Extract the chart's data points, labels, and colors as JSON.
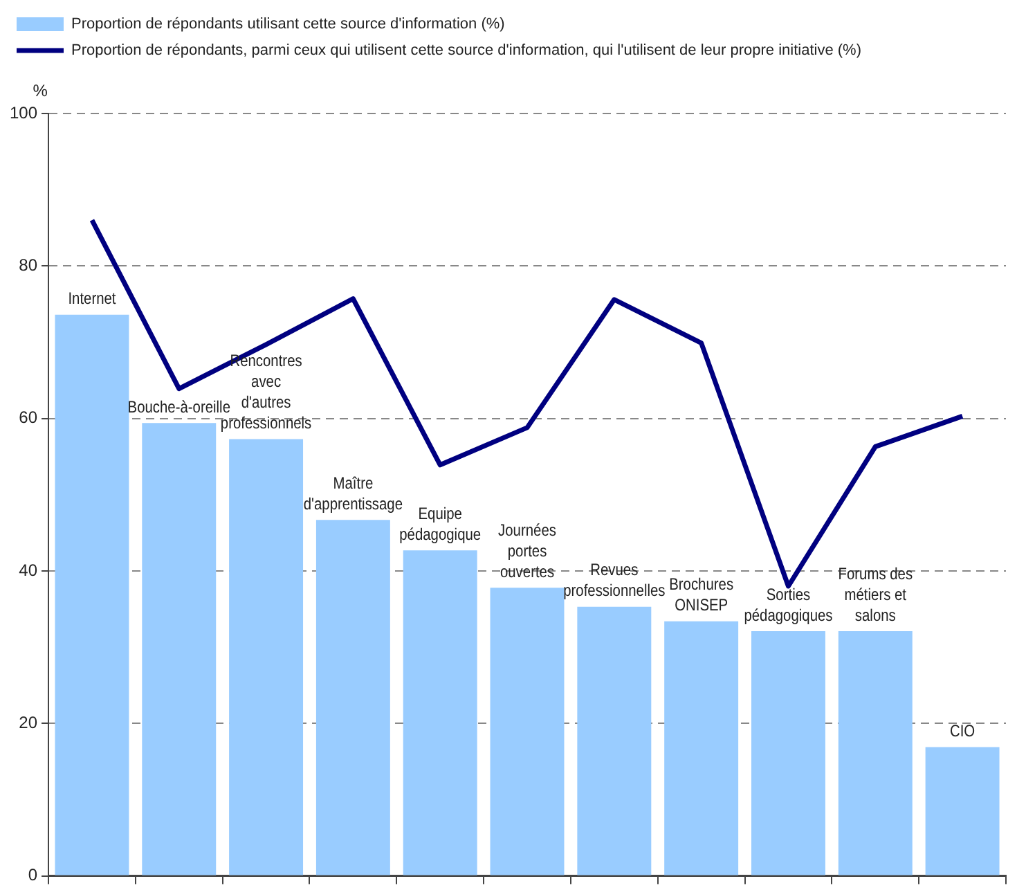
{
  "chart_data": {
    "type": "bar",
    "ylabel": "%",
    "categories": [
      "Internet",
      "Bouche-à-oreille",
      "Rencontres avec d'autres professionnels",
      "Maître d'apprentissage",
      "Equipe pédagogique",
      "Journées portes ouvertes",
      "Revues professionnelles",
      "Brochures ONISEP",
      "Sorties pédagogiques",
      "Forums des métiers et salons",
      "CIO"
    ],
    "series": [
      {
        "name": "Proportion de répondants utilisant cette source d'information (%)",
        "type": "bar",
        "color": "#99ccff",
        "values": [
          73.6,
          59.4,
          57.3,
          46.7,
          42.7,
          37.8,
          35.3,
          33.4,
          32.1,
          32.1,
          16.9
        ]
      },
      {
        "name": "Proportion de répondants, parmi ceux qui utilisent cette source d'information, qui l'utilisent de leur propre initiative (%)",
        "type": "line",
        "color": "#000080",
        "values": [
          86,
          63.9,
          69.7,
          75.7,
          53.9,
          58.8,
          75.6,
          69.9,
          38,
          56.3,
          60.3
        ]
      }
    ],
    "ylim": [
      0,
      100
    ],
    "yticks": [
      0,
      20,
      40,
      60,
      80,
      100
    ],
    "grid": "y",
    "legend": "top left",
    "marker": "none",
    "line_style": "solid"
  }
}
